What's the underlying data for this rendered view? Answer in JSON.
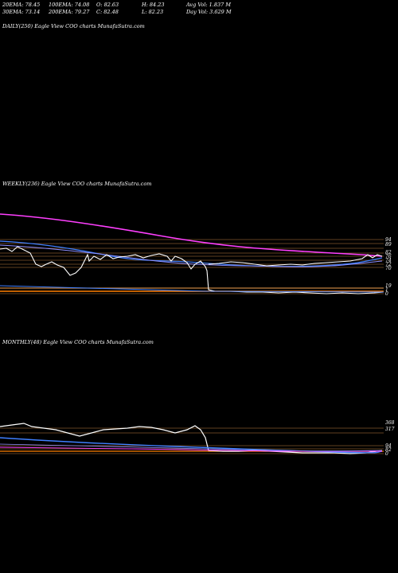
{
  "stats": {
    "ema20": "20EMA: 78.45",
    "ema100": "100EMA: 74.08",
    "open": "O: 82.63",
    "high": "H: 84.23",
    "avg_vol": "Avg Vol: 1.837 M",
    "ema30": "30EMA: 73.14",
    "ema200": "200EMA: 79.27",
    "close": "C: 82.48",
    "low": "L: 82.23",
    "day_vol": "Day Vol: 3.629 M"
  },
  "panels": {
    "daily_label": "DAILY(250) Eagle   View  COO charts MunafaSutra.com",
    "weekly_label": "WEEKLY(236) Eagle   View  COO charts MunafaSutra.com",
    "monthly_label": "MONTHLY(48) Eagle   View  COO charts MunafaSutra.com"
  },
  "weekly_ticks": [
    "94",
    "89",
    "82",
    "76",
    "74",
    "72",
    "70",
    "19",
    "1",
    "0"
  ],
  "monthly_ticks": [
    "368",
    "317",
    "94",
    "82",
    "0"
  ],
  "colors": {
    "background": "#000000",
    "price": "#ffffff",
    "ema_fast": "#3f7fff",
    "ema_slow": "#ff3fff",
    "level_lines": "#c08040"
  }
}
